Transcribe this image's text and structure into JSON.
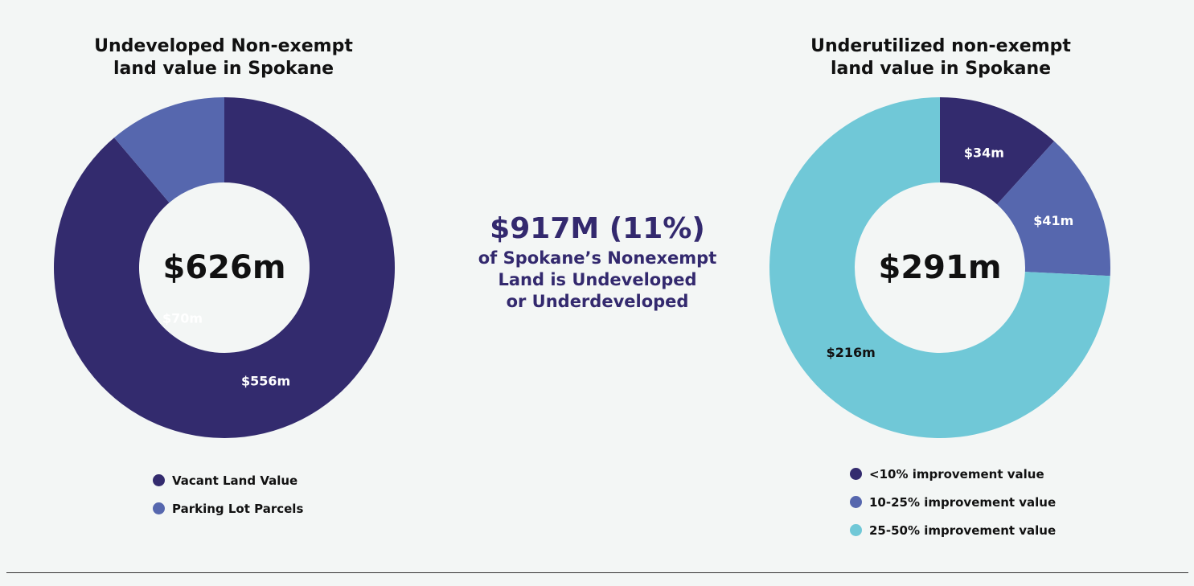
{
  "headline": {
    "value": "$917M (11%)",
    "text": "of Spokane’s Nonexempt\nLand is Undeveloped\nor Underdeveloped"
  },
  "chart_data": [
    {
      "type": "pie",
      "title": "Undeveloped Non-exempt\nland value in Spokane",
      "total_label": "$626m",
      "slices": [
        {
          "name": "Vacant Land Value",
          "value": 556,
          "label": "$556m",
          "color": "#332b6e",
          "label_color": "#ffffff"
        },
        {
          "name": "Parking Lot Parcels",
          "value": 70,
          "label": "$70m",
          "color": "#5667ae",
          "label_color": "#ffffff"
        }
      ],
      "legend": "bottom"
    },
    {
      "type": "pie",
      "title": "Underutilized non-exempt\nland value in Spokane",
      "total_label": "$291m",
      "slices": [
        {
          "name": "<10% improvement value",
          "value": 34,
          "label": "$34m",
          "color": "#332b6e",
          "label_color": "#ffffff"
        },
        {
          "name": "10-25% improvement value",
          "value": 41,
          "label": "$41m",
          "color": "#5667ae",
          "label_color": "#ffffff"
        },
        {
          "name": "25-50% improvement value",
          "value": 216,
          "label": "$216m",
          "color": "#70c8d7",
          "label_color": "#111111"
        }
      ],
      "legend": "bottom"
    }
  ]
}
